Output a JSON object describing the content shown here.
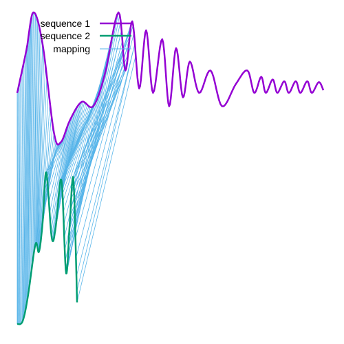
{
  "chart_data": {
    "type": "line",
    "title": "",
    "xlabel": "",
    "ylabel": "",
    "grid": false,
    "axes_visible": false,
    "legend_position": "top-left",
    "series": [
      {
        "name": "sequence 1",
        "color": "#9400d3",
        "points": [
          [
            0,
            0.0
          ],
          [
            4,
            0.48
          ],
          [
            7,
            0.9
          ],
          [
            11,
            0.55
          ],
          [
            16,
            -0.45
          ],
          [
            19,
            -0.55
          ],
          [
            23,
            -0.3
          ],
          [
            28,
            -0.1
          ],
          [
            33,
            -0.15
          ],
          [
            38,
            0.2
          ],
          [
            44,
            0.9
          ],
          [
            47,
            0.25
          ],
          [
            50,
            0.8
          ],
          [
            53,
            0.05
          ],
          [
            56,
            0.7
          ],
          [
            59,
            0.0
          ],
          [
            63,
            0.6
          ],
          [
            66,
            -0.15
          ],
          [
            69,
            0.5
          ],
          [
            72,
            -0.05
          ],
          [
            75,
            0.35
          ],
          [
            79,
            0.0
          ],
          [
            84,
            0.25
          ],
          [
            89,
            -0.15
          ],
          [
            95,
            0.1
          ],
          [
            100,
            0.25
          ],
          [
            103,
            0.0
          ],
          [
            106,
            0.18
          ],
          [
            108,
            0.0
          ],
          [
            111,
            0.15
          ],
          [
            113,
            0.0
          ],
          [
            116,
            0.13
          ],
          [
            118,
            0.0
          ],
          [
            121,
            0.13
          ],
          [
            123,
            0.0
          ],
          [
            126,
            0.13
          ],
          [
            128,
            0.0
          ],
          [
            131,
            0.12
          ],
          [
            133,
            0.03
          ]
        ]
      },
      {
        "name": "sequence 2",
        "color": "#009e73",
        "points": [
          [
            0,
            -1.6
          ],
          [
            3,
            -1.58
          ],
          [
            6,
            -1.4
          ],
          [
            10,
            -1.05
          ],
          [
            12,
            -1.1
          ],
          [
            14,
            -0.9
          ],
          [
            16,
            -0.55
          ],
          [
            19,
            -1.0
          ],
          [
            21,
            -0.95
          ],
          [
            23,
            -0.7
          ],
          [
            24,
            -0.6
          ],
          [
            25,
            -0.7
          ],
          [
            27,
            -1.25
          ],
          [
            29,
            -0.9
          ],
          [
            31,
            -0.6
          ],
          [
            33,
            -1.45
          ]
        ]
      },
      {
        "name": "mapping",
        "color": "#56b4e9",
        "pairs": 120
      }
    ]
  }
}
